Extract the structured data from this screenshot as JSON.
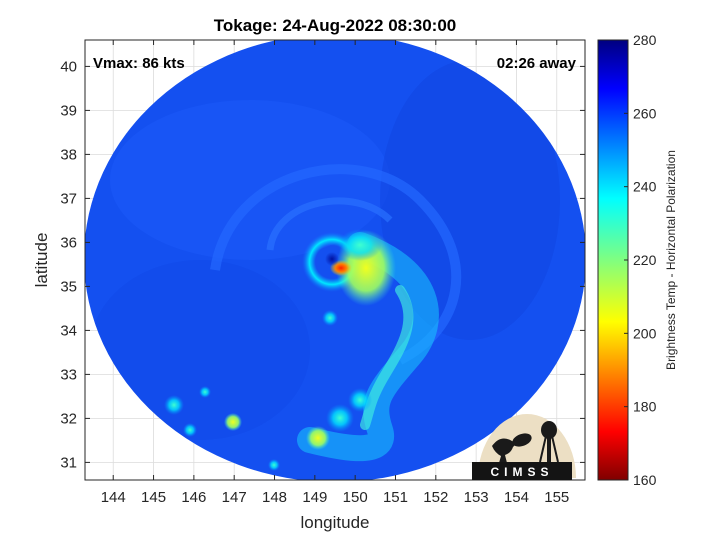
{
  "chart_data": {
    "type": "heatmap",
    "title": "Tokage: 24-Aug-2022 08:30:00",
    "xlabel": "longitude",
    "ylabel": "latitude",
    "xlim": [
      143.3,
      155.7
    ],
    "ylim": [
      30.6,
      40.6
    ],
    "xticks": [
      144,
      145,
      146,
      147,
      148,
      149,
      150,
      151,
      152,
      153,
      154,
      155
    ],
    "yticks": [
      31,
      32,
      33,
      34,
      35,
      36,
      37,
      38,
      39,
      40
    ],
    "grid": true,
    "annotations": {
      "vmax": "Vmax: 86 kts",
      "time_offset": "02:26 away"
    },
    "colorbar": {
      "label": "Brightness Temp - Horizontal Polarization",
      "range": [
        160,
        280
      ],
      "ticks": [
        160,
        180,
        200,
        220,
        240,
        260,
        280
      ],
      "colormap": "jet"
    },
    "swath": {
      "center_lon": 149.4,
      "center_lat": 35.6
    },
    "storm_center": {
      "lon": 149.3,
      "lat": 35.55
    },
    "features": [
      {
        "name": "eye",
        "lon": 149.25,
        "lat": 35.55,
        "value": 262
      },
      {
        "name": "eyewall-max",
        "lon": 149.45,
        "lat": 35.3,
        "value": 185
      },
      {
        "name": "north-band",
        "lon": 149.8,
        "lat": 35.4,
        "value": 215
      },
      {
        "name": "rain-band",
        "lon": 149.8,
        "lat": 33.3,
        "value": 238
      },
      {
        "name": "south-cell",
        "lon": 148.9,
        "lat": 31.55,
        "value": 225
      },
      {
        "name": "west-cell-1",
        "lon": 146.8,
        "lat": 31.9,
        "value": 230
      },
      {
        "name": "west-cell-2",
        "lon": 145.5,
        "lat": 32.2,
        "value": 238
      }
    ],
    "background_value": 262
  },
  "logo": {
    "text": "CIMSS"
  }
}
